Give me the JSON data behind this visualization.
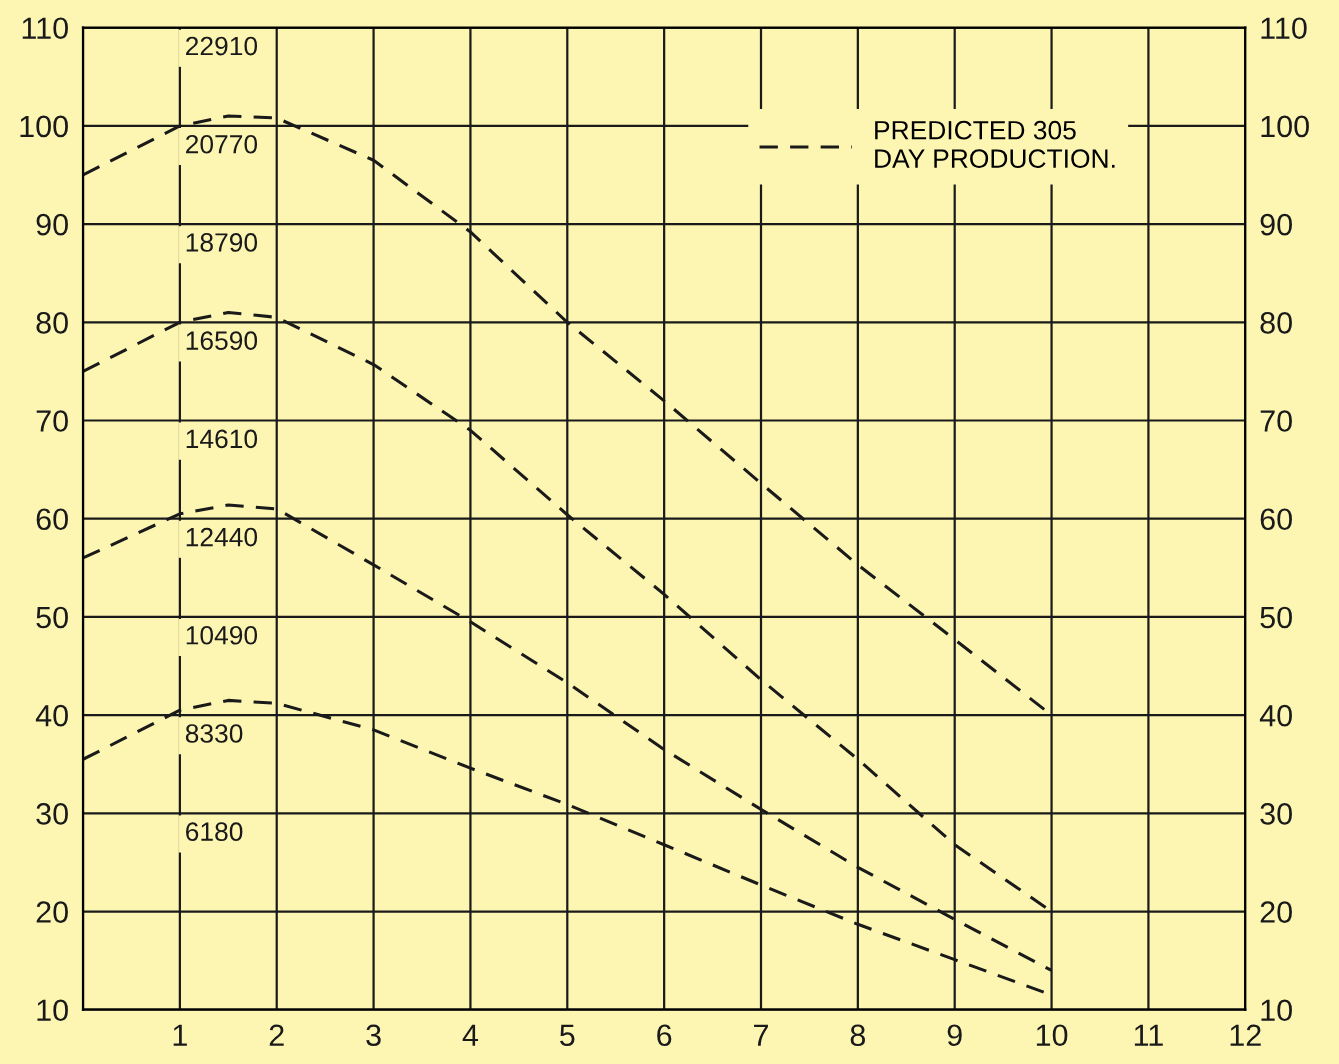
{
  "chart_data": {
    "type": "line",
    "x": [
      0,
      1,
      1.5,
      2,
      3,
      4,
      5,
      6,
      7,
      8,
      9,
      10
    ],
    "series": [
      {
        "name": "PREDICTED 305\nDAY PRODUCTION.",
        "color": "#1a1a1a",
        "values": [
          95,
          100,
          101,
          100.8,
          96.5,
          89.2,
          80,
          72,
          63.6,
          55.3,
          47.7,
          40
        ]
      },
      {
        "color": "#1a1a1a",
        "values": [
          75,
          80,
          81,
          80.5,
          75.7,
          69,
          60.4,
          52.3,
          43.6,
          35.5,
          26.8,
          20
        ]
      },
      {
        "color": "#1a1a1a",
        "values": [
          56,
          60.5,
          61.4,
          61,
          55.3,
          49.5,
          43.3,
          36.5,
          30.4,
          24.5,
          19.2,
          14
        ]
      },
      {
        "color": "#1a1a1a",
        "values": [
          35.5,
          40.5,
          41.5,
          41.2,
          38.5,
          34.6,
          30.9,
          26.8,
          22.7,
          18.7,
          15.1,
          11.5
        ]
      }
    ],
    "line_style": "dashed",
    "marker": "none",
    "xlim": [
      0,
      12
    ],
    "xticks": [
      {
        "value": 0,
        "label": null
      },
      1,
      2,
      3,
      4,
      5,
      6,
      7,
      8,
      9,
      10,
      11,
      12
    ],
    "ylim": [
      10,
      110
    ],
    "yticks": [
      10,
      20,
      30,
      40,
      50,
      60,
      70,
      80,
      90,
      100,
      110
    ],
    "y2lim": [
      10,
      110
    ],
    "y2ticks": [
      10,
      20,
      30,
      40,
      50,
      60,
      70,
      80,
      90,
      100,
      110
    ],
    "annotations": [
      "22910",
      "20770",
      "18790",
      "16590",
      "14610",
      "12440",
      "10490",
      "8330",
      "6180"
    ],
    "grid": true,
    "legend": "top right"
  }
}
